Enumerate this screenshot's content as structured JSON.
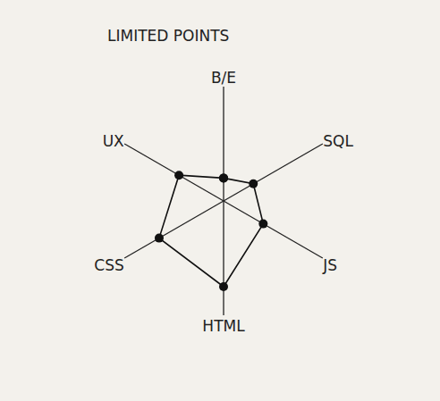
{
  "chart_data": {
    "type": "radar",
    "title": "LIMITED POINTS",
    "categories": [
      "B/E",
      "SQL",
      "JS",
      "HTML",
      "CSS",
      "UX"
    ],
    "values": [
      2,
      3,
      4,
      7.5,
      6.5,
      4.5
    ],
    "ylim": [
      0,
      10
    ],
    "tick_labels": "x",
    "color": "#111111",
    "marker": "circle",
    "line_style": "solid"
  }
}
